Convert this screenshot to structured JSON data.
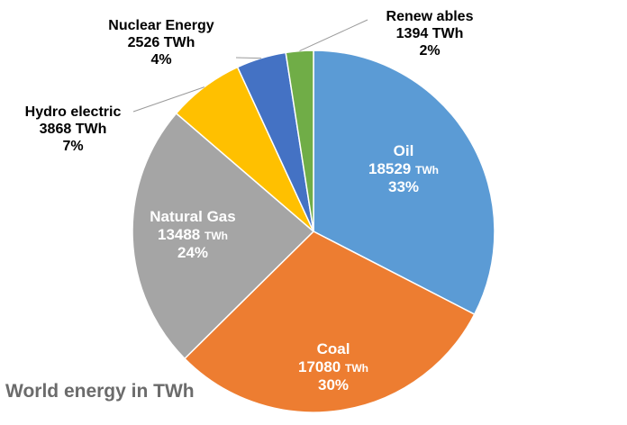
{
  "chart_data": {
    "type": "pie",
    "title": "World energy in TWh",
    "unit": "TWh",
    "slices": [
      {
        "name": "Oil",
        "value": 18529,
        "percent": "33%",
        "color": "#5B9BD5"
      },
      {
        "name": "Coal",
        "value": 17080,
        "percent": "30%",
        "color": "#ED7D31"
      },
      {
        "name": "Natural Gas",
        "value": 13488,
        "percent": "24%",
        "color": "#A5A5A5"
      },
      {
        "name": "Hydro electric",
        "value": 3868,
        "percent": "7%",
        "color": "#FFC000"
      },
      {
        "name": "Nuclear Energy",
        "value": 2526,
        "percent": "4%",
        "color": "#4472C4"
      },
      {
        "name": "Renew ables",
        "value": 1394,
        "percent": "2%",
        "color": "#70AD47"
      }
    ],
    "labels": [
      {
        "name": "Oil",
        "value_text": "18529",
        "unit": "TWh",
        "percent": "33%"
      },
      {
        "name": "Coal",
        "value_text": "17080",
        "unit": "TWh",
        "percent": "30%"
      },
      {
        "name": "Natural Gas",
        "value_text": "13488",
        "unit": "TWh",
        "percent": "24%"
      },
      {
        "name": "Hydro electric",
        "value_text": "3868 TWh",
        "percent": "7%"
      },
      {
        "name": "Nuclear Energy",
        "value_text": "2526 TWh",
        "percent": "4%"
      },
      {
        "name": "Renew ables",
        "value_text": "1394 TWh",
        "percent": "2%"
      }
    ],
    "legend": "none"
  }
}
